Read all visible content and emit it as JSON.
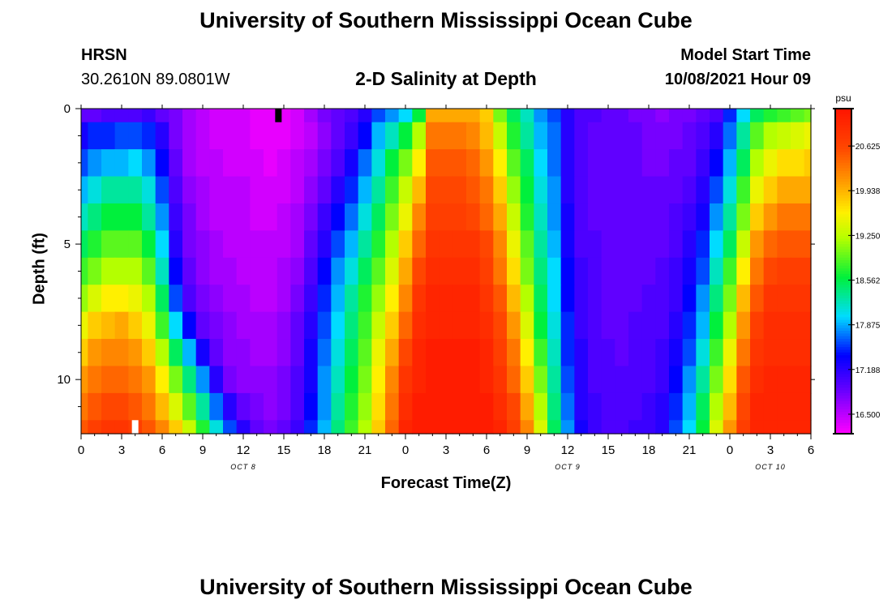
{
  "header": {
    "title": "University of Southern Mississippi Ocean Cube",
    "station_name": "HRSN",
    "station_coords": "30.2610N  89.0801W",
    "model_label": "Model Start Time",
    "model_time": "10/08/2021 Hour 09",
    "footer_title": "University of Southern Mississippi Ocean Cube"
  },
  "chart_data": {
    "type": "heatmap",
    "title": "2-D Salinity at Depth",
    "xlabel": "Forecast Time(Z)",
    "ylabel": "Depth (ft)",
    "x_tick_labels": [
      "0",
      "3",
      "6",
      "9",
      "12",
      "15",
      "18",
      "21",
      "0",
      "3",
      "6",
      "9",
      "12",
      "15",
      "18",
      "21",
      "0",
      "3",
      "6"
    ],
    "x_range_hours": [
      0,
      54
    ],
    "date_labels": [
      {
        "text": "OCT 8",
        "hour": 12
      },
      {
        "text": "OCT 9",
        "hour": 36
      },
      {
        "text": "OCT 10",
        "hour": 51
      }
    ],
    "y_tick_labels": [
      "0",
      "5",
      "10"
    ],
    "y_range_ft": [
      0,
      12
    ],
    "colorbar": {
      "unit": "psu",
      "tick_labels": [
        "20.625",
        "19.938",
        "19.250",
        "18.562",
        "17.875",
        "17.188",
        "16.500"
      ],
      "range": [
        16.2,
        21.2
      ]
    },
    "hours": [
      0,
      1,
      2,
      3,
      4,
      5,
      6,
      7,
      8,
      9,
      10,
      11,
      12,
      13,
      14,
      15,
      16,
      17,
      18,
      19,
      20,
      21,
      22,
      23,
      24,
      25,
      26,
      27,
      28,
      29,
      30,
      31,
      32,
      33,
      34,
      35,
      36,
      37,
      38,
      39,
      40,
      41,
      42,
      43,
      44,
      45,
      46,
      47,
      48,
      49,
      50,
      51,
      52,
      53,
      54
    ],
    "depths": [
      0,
      1,
      2,
      3,
      4,
      5,
      6,
      7,
      8,
      9,
      10,
      11,
      12
    ],
    "values_by_depth": [
      [
        16.9,
        16.9,
        17.0,
        17.0,
        17.0,
        17.1,
        16.9,
        16.8,
        16.6,
        16.5,
        16.4,
        16.4,
        16.4,
        16.3,
        16.3,
        16.3,
        16.4,
        16.6,
        16.8,
        16.9,
        17.0,
        17.2,
        17.6,
        17.8,
        18.0,
        18.6,
        20.0,
        20.0,
        20.0,
        20.0,
        19.8,
        19.0,
        18.5,
        18.2,
        17.8,
        17.6,
        17.2,
        17.0,
        17.0,
        16.9,
        16.9,
        16.8,
        16.8,
        16.7,
        16.8,
        16.8,
        16.9,
        17.0,
        17.5,
        18.0,
        18.5,
        18.7,
        18.8,
        18.9,
        19.0
      ],
      [
        17.3,
        17.5,
        17.5,
        17.6,
        17.6,
        17.5,
        17.2,
        16.8,
        16.6,
        16.5,
        16.4,
        16.4,
        16.4,
        16.3,
        16.3,
        16.3,
        16.4,
        16.5,
        16.7,
        16.9,
        17.1,
        17.4,
        17.9,
        18.2,
        18.6,
        19.2,
        20.3,
        20.3,
        20.3,
        20.2,
        19.9,
        19.3,
        18.7,
        18.3,
        17.9,
        17.7,
        17.2,
        17.0,
        16.9,
        16.9,
        16.9,
        16.9,
        16.8,
        16.8,
        16.8,
        16.9,
        17.0,
        17.2,
        17.7,
        18.3,
        18.9,
        19.2,
        19.3,
        19.4,
        19.5
      ],
      [
        17.6,
        17.8,
        17.9,
        17.9,
        18.0,
        17.8,
        17.4,
        16.9,
        16.6,
        16.5,
        16.5,
        16.4,
        16.4,
        16.4,
        16.3,
        16.4,
        16.5,
        16.6,
        16.8,
        17.0,
        17.3,
        17.7,
        18.1,
        18.6,
        19.0,
        19.6,
        20.5,
        20.5,
        20.5,
        20.4,
        20.1,
        19.6,
        18.9,
        18.5,
        18.0,
        17.7,
        17.2,
        17.0,
        16.9,
        16.9,
        16.9,
        16.9,
        16.8,
        16.8,
        16.9,
        16.9,
        17.1,
        17.4,
        17.9,
        18.5,
        19.2,
        19.5,
        19.7,
        19.7,
        19.8
      ],
      [
        17.9,
        18.1,
        18.3,
        18.3,
        18.3,
        18.1,
        17.6,
        17.0,
        16.7,
        16.6,
        16.5,
        16.5,
        16.5,
        16.4,
        16.4,
        16.4,
        16.5,
        16.7,
        16.9,
        17.2,
        17.5,
        17.9,
        18.3,
        18.8,
        19.3,
        19.9,
        20.6,
        20.6,
        20.6,
        20.5,
        20.3,
        19.8,
        19.1,
        18.6,
        18.1,
        17.8,
        17.2,
        17.0,
        16.9,
        16.9,
        16.9,
        16.9,
        16.9,
        16.9,
        16.9,
        17.0,
        17.2,
        17.6,
        18.1,
        18.8,
        19.5,
        19.8,
        20.0,
        20.0,
        20.0
      ],
      [
        18.2,
        18.4,
        18.6,
        18.6,
        18.6,
        18.3,
        17.8,
        17.1,
        16.8,
        16.6,
        16.5,
        16.5,
        16.5,
        16.4,
        16.4,
        16.5,
        16.6,
        16.8,
        17.1,
        17.4,
        17.7,
        18.1,
        18.5,
        19.0,
        19.5,
        20.2,
        20.7,
        20.7,
        20.7,
        20.6,
        20.4,
        20.0,
        19.3,
        18.7,
        18.2,
        17.8,
        17.3,
        17.0,
        16.9,
        16.9,
        16.9,
        16.9,
        16.9,
        16.9,
        17.0,
        17.1,
        17.3,
        17.8,
        18.3,
        19.0,
        19.8,
        20.1,
        20.3,
        20.3,
        20.3
      ],
      [
        18.5,
        18.7,
        18.9,
        18.9,
        18.9,
        18.6,
        18.0,
        17.2,
        16.8,
        16.7,
        16.6,
        16.5,
        16.5,
        16.5,
        16.5,
        16.5,
        16.6,
        16.9,
        17.2,
        17.6,
        17.9,
        18.3,
        18.7,
        19.2,
        19.8,
        20.4,
        20.8,
        20.8,
        20.8,
        20.8,
        20.6,
        20.2,
        19.5,
        18.9,
        18.3,
        17.9,
        17.3,
        17.0,
        17.0,
        16.9,
        16.9,
        16.9,
        16.9,
        16.9,
        17.0,
        17.2,
        17.5,
        18.0,
        18.5,
        19.3,
        20.1,
        20.4,
        20.5,
        20.5,
        20.5
      ],
      [
        18.8,
        19.0,
        19.2,
        19.2,
        19.2,
        18.9,
        18.2,
        17.4,
        16.9,
        16.7,
        16.6,
        16.6,
        16.5,
        16.5,
        16.5,
        16.6,
        16.7,
        17.0,
        17.4,
        17.8,
        18.1,
        18.5,
        18.9,
        19.4,
        20.0,
        20.6,
        20.9,
        20.9,
        20.9,
        20.9,
        20.7,
        20.3,
        19.7,
        19.0,
        18.4,
        18.0,
        17.4,
        17.1,
        17.0,
        16.9,
        16.9,
        16.9,
        16.9,
        17.0,
        17.1,
        17.3,
        17.6,
        18.2,
        18.8,
        19.6,
        20.3,
        20.6,
        20.7,
        20.7,
        20.7
      ],
      [
        19.1,
        19.4,
        19.6,
        19.6,
        19.5,
        19.2,
        18.5,
        17.6,
        17.0,
        16.8,
        16.7,
        16.6,
        16.6,
        16.5,
        16.5,
        16.6,
        16.8,
        17.1,
        17.5,
        17.9,
        18.3,
        18.7,
        19.1,
        19.6,
        20.2,
        20.8,
        21.0,
        21.0,
        21.0,
        21.0,
        20.8,
        20.5,
        19.9,
        19.2,
        18.5,
        18.0,
        17.4,
        17.1,
        17.0,
        16.9,
        16.9,
        16.9,
        17.0,
        17.0,
        17.1,
        17.4,
        17.8,
        18.4,
        19.0,
        19.9,
        20.5,
        20.8,
        20.8,
        20.8,
        20.8
      ],
      [
        19.5,
        19.8,
        19.9,
        20.0,
        19.8,
        19.5,
        18.8,
        18.0,
        17.4,
        16.9,
        16.8,
        16.7,
        16.6,
        16.6,
        16.6,
        16.7,
        16.9,
        17.2,
        17.6,
        18.0,
        18.4,
        18.8,
        19.3,
        19.8,
        20.4,
        20.9,
        21.0,
        21.0,
        21.0,
        21.0,
        20.9,
        20.6,
        20.1,
        19.4,
        18.6,
        18.1,
        17.5,
        17.1,
        17.0,
        16.9,
        16.9,
        17.0,
        17.0,
        17.0,
        17.2,
        17.5,
        17.9,
        18.6,
        19.2,
        20.1,
        20.7,
        20.9,
        20.9,
        20.9,
        20.9
      ],
      [
        19.8,
        20.1,
        20.2,
        20.2,
        20.1,
        19.8,
        19.2,
        18.5,
        17.9,
        17.3,
        16.9,
        16.7,
        16.7,
        16.6,
        16.6,
        16.7,
        16.9,
        17.3,
        17.7,
        18.1,
        18.5,
        18.9,
        19.5,
        20.0,
        20.6,
        21.0,
        21.1,
        21.1,
        21.1,
        21.1,
        21.0,
        20.7,
        20.3,
        19.6,
        18.8,
        18.2,
        17.5,
        17.2,
        17.0,
        17.0,
        16.9,
        17.0,
        17.0,
        17.1,
        17.3,
        17.6,
        18.1,
        18.8,
        19.5,
        20.3,
        20.8,
        20.9,
        20.9,
        20.9,
        20.9
      ],
      [
        20.1,
        20.3,
        20.4,
        20.4,
        20.3,
        20.1,
        19.6,
        19.0,
        18.4,
        17.8,
        17.2,
        16.8,
        16.7,
        16.7,
        16.7,
        16.8,
        17.0,
        17.3,
        17.8,
        18.2,
        18.6,
        19.0,
        19.6,
        20.2,
        20.8,
        21.0,
        21.1,
        21.1,
        21.1,
        21.1,
        21.0,
        20.8,
        20.4,
        19.8,
        19.0,
        18.3,
        17.6,
        17.2,
        17.0,
        17.0,
        17.0,
        17.0,
        17.0,
        17.1,
        17.4,
        17.8,
        18.3,
        19.0,
        19.7,
        20.5,
        20.9,
        21.0,
        21.0,
        21.0,
        21.0
      ],
      [
        20.3,
        20.5,
        20.6,
        20.6,
        20.5,
        20.3,
        19.9,
        19.4,
        18.9,
        18.3,
        17.7,
        17.2,
        16.9,
        16.8,
        16.7,
        16.8,
        17.0,
        17.4,
        17.8,
        18.3,
        18.7,
        19.1,
        19.7,
        20.3,
        20.9,
        21.1,
        21.1,
        21.1,
        21.1,
        21.1,
        21.1,
        20.9,
        20.6,
        20.0,
        19.2,
        18.4,
        17.7,
        17.2,
        17.1,
        17.0,
        17.0,
        17.0,
        17.1,
        17.2,
        17.5,
        17.9,
        18.5,
        19.2,
        19.9,
        20.6,
        21.0,
        21.0,
        21.0,
        21.0,
        21.0
      ],
      [
        20.5,
        20.7,
        20.8,
        20.8,
        20.7,
        20.5,
        20.2,
        19.8,
        19.3,
        18.7,
        18.1,
        17.6,
        17.2,
        16.9,
        16.8,
        16.9,
        17.1,
        17.5,
        17.9,
        18.4,
        18.8,
        19.2,
        19.8,
        20.4,
        21.0,
        21.1,
        21.1,
        21.1,
        21.1,
        21.1,
        21.1,
        21.0,
        20.7,
        20.2,
        19.4,
        18.5,
        17.8,
        17.3,
        17.1,
        17.0,
        17.0,
        17.1,
        17.1,
        17.2,
        17.6,
        18.0,
        18.6,
        19.4,
        20.1,
        20.7,
        21.0,
        21.0,
        21.0,
        21.0,
        21.0
      ]
    ],
    "markers": [
      {
        "color": "#000000",
        "hour": 14.6,
        "depth_from": 0,
        "depth_to": 0.5
      },
      {
        "color": "#ffffff",
        "hour": 4,
        "depth_from": 11.5,
        "depth_to": 12
      }
    ]
  }
}
